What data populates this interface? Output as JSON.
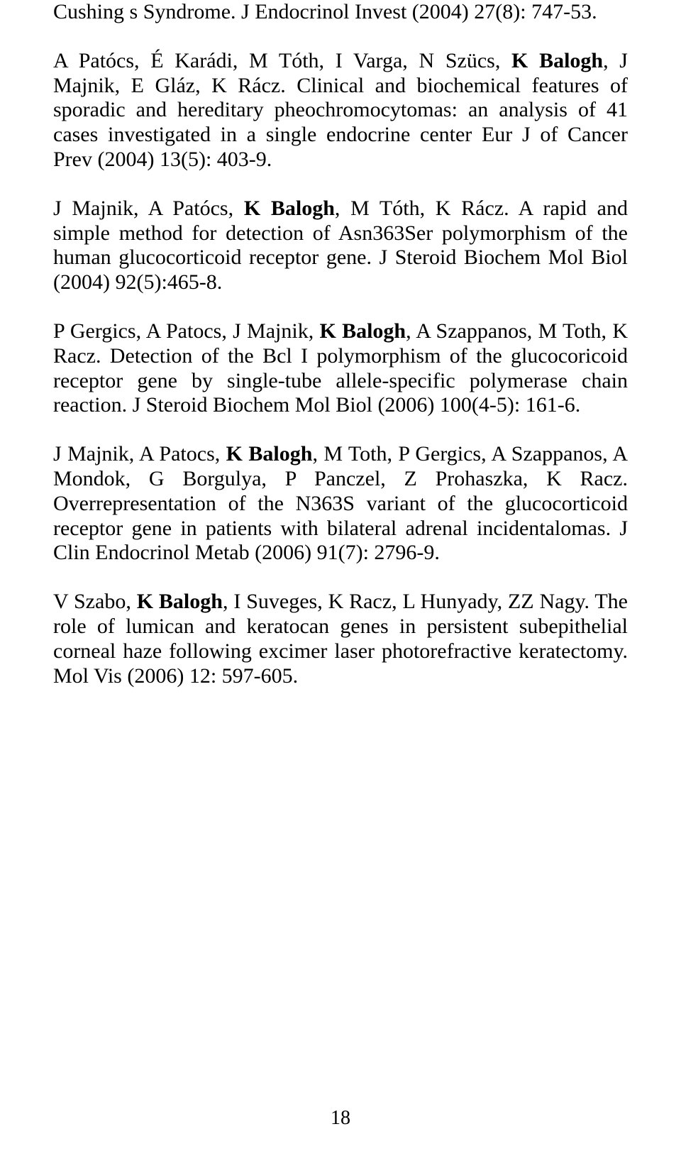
{
  "text": {
    "p1a": "Cushing s Syndrome. J Endocrinol Invest (2004) 27(8): 747-53.",
    "p2a": "A Patócs, É Karádi, M Tóth, I Varga, N Szücs, ",
    "p2b": "K Balogh",
    "p2c": ", J Majnik, E Gláz, K Rácz. Clinical and biochemical features of sporadic and hereditary pheochromocytomas: an analysis of 41 cases investigated in a single endocrine center Eur J of Cancer Prev (2004) 13(5): 403-9.",
    "p3a": "J Majnik, A Patócs, ",
    "p3b": "K Balogh",
    "p3c": ", M Tóth, K Rácz. A rapid and simple method for detection of Asn363Ser polymorphism of the human glucocorticoid receptor gene. J Steroid Biochem Mol Biol (2004) 92(5):465-8.",
    "p4a": "P Gergics, A Patocs, J Majnik, ",
    "p4b": "K Balogh",
    "p4c": ", A Szappanos, M Toth, K Racz. Detection of the Bcl I polymorphism of the glucocoricoid receptor gene by single-tube allele-specific polymerase chain reaction. J Steroid Biochem Mol Biol (2006) 100(4-5): 161-6.",
    "p5a": "J Majnik, A Patocs, ",
    "p5b": "K Balogh",
    "p5c": ", M Toth, P Gergics, A Szappanos, A Mondok, G Borgulya, P Panczel, Z Prohaszka, K Racz. Overrepresentation of the N363S variant of the glucocorticoid receptor gene in patients with bilateral adrenal incidentalomas. J Clin Endocrinol Metab (2006) 91(7): 2796-9.",
    "p6a": "V Szabo, ",
    "p6b": "K Balogh",
    "p6c": ", I Suveges, K Racz, L Hunyady, ZZ Nagy. The role of lumican and keratocan genes in persistent subepithelial corneal haze following excimer laser photorefractive keratectomy. Mol Vis (2006) 12: 597-605."
  },
  "page_number": "18",
  "style": {
    "font_family": "Times New Roman",
    "font_size_pt": 12,
    "text_color": "#000000",
    "background_color": "#ffffff",
    "align": "justify"
  }
}
